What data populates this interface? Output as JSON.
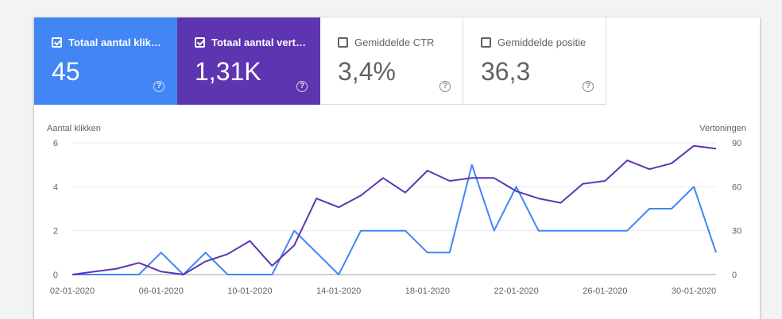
{
  "metrics": [
    {
      "label": "Totaal aantal klik…",
      "value": "45",
      "checked": true,
      "color": "#4285f4"
    },
    {
      "label": "Totaal aantal vert…",
      "value": "1,31K",
      "checked": true,
      "color": "#5e35b1"
    },
    {
      "label": "Gemiddelde CTR",
      "value": "3,4%",
      "checked": false,
      "color": "#ffffff"
    },
    {
      "label": "Gemiddelde positie",
      "value": "36,3",
      "checked": false,
      "color": "#ffffff"
    }
  ],
  "help_glyph": "?",
  "chart": {
    "left_axis_title": "Aantal klikken",
    "right_axis_title": "Vertoningen"
  },
  "chart_data": {
    "type": "line",
    "x": [
      "02-01-2020",
      "03-01-2020",
      "04-01-2020",
      "05-01-2020",
      "06-01-2020",
      "07-01-2020",
      "08-01-2020",
      "09-01-2020",
      "10-01-2020",
      "11-01-2020",
      "12-01-2020",
      "13-01-2020",
      "14-01-2020",
      "15-01-2020",
      "16-01-2020",
      "17-01-2020",
      "18-01-2020",
      "19-01-2020",
      "20-01-2020",
      "21-01-2020",
      "22-01-2020",
      "23-01-2020",
      "24-01-2020",
      "25-01-2020",
      "26-01-2020",
      "27-01-2020",
      "28-01-2020",
      "29-01-2020",
      "30-01-2020",
      "31-01-2020"
    ],
    "x_tick_labels": [
      "02-01-2020",
      "06-01-2020",
      "10-01-2020",
      "14-01-2020",
      "18-01-2020",
      "22-01-2020",
      "26-01-2020",
      "30-01-2020"
    ],
    "series": [
      {
        "name": "Totaal aantal klikken",
        "axis": "left",
        "color": "#4285f4",
        "values": [
          0,
          0,
          0,
          0,
          1,
          0,
          1,
          0,
          0,
          0,
          2,
          1,
          0,
          2,
          2,
          2,
          1,
          1,
          5,
          2,
          4,
          2,
          2,
          2,
          2,
          2,
          3,
          3,
          4,
          1
        ]
      },
      {
        "name": "Totaal aantal vertoningen",
        "axis": "right",
        "color": "#5e35b1",
        "values": [
          0,
          2,
          4,
          8,
          2,
          0,
          9,
          14,
          23,
          6,
          20,
          52,
          46,
          54,
          66,
          56,
          71,
          64,
          66,
          66,
          57,
          52,
          49,
          62,
          64,
          78,
          72,
          76,
          88,
          86
        ]
      }
    ],
    "left_axis": {
      "min": 0,
      "max": 6,
      "ticks": [
        "0",
        "2",
        "4",
        "6"
      ],
      "tick_values": [
        0,
        2,
        4,
        6
      ]
    },
    "right_axis": {
      "min": 0,
      "max": 90,
      "ticks": [
        "0",
        "30",
        "60",
        "90"
      ],
      "tick_values": [
        0,
        30,
        60,
        90
      ]
    },
    "grid": true
  }
}
